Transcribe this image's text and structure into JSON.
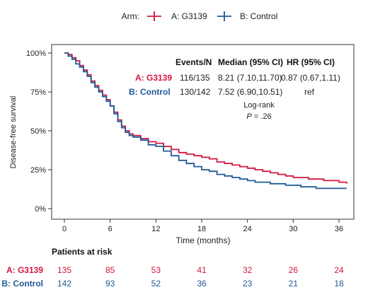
{
  "chart_data": {
    "type": "line",
    "xlabel": "Time (months)",
    "ylabel": "Disease-free survival",
    "xlim": [
      -2,
      37.5
    ],
    "ylim": [
      0,
      100
    ],
    "x_ticks": [
      0,
      6,
      12,
      18,
      24,
      30,
      36
    ],
    "y_ticks": [
      0,
      25,
      50,
      75,
      100
    ],
    "y_tick_labels": [
      "0%",
      "25%",
      "50%",
      "75%",
      "100%"
    ],
    "grid": false,
    "legend": {
      "title": "Arm:",
      "position": "top-center",
      "entries": [
        "A: G3139",
        "B: Control"
      ]
    },
    "colors": {
      "arm_a": "#d1173f",
      "arm_b": "#1f5a96"
    },
    "series": [
      {
        "name": "A: G3139",
        "color": "#d1173f",
        "points": [
          [
            0,
            100
          ],
          [
            0.5,
            99
          ],
          [
            1,
            97
          ],
          [
            1.5,
            95
          ],
          [
            2,
            92
          ],
          [
            2.5,
            89
          ],
          [
            3,
            86
          ],
          [
            3.5,
            82
          ],
          [
            4,
            79
          ],
          [
            4.5,
            76
          ],
          [
            5,
            73
          ],
          [
            5.5,
            70
          ],
          [
            6,
            66
          ],
          [
            6.5,
            62
          ],
          [
            7,
            57
          ],
          [
            7.5,
            53
          ],
          [
            8,
            50
          ],
          [
            8.5,
            48
          ],
          [
            9,
            47
          ],
          [
            10,
            45
          ],
          [
            11,
            43
          ],
          [
            12,
            42
          ],
          [
            13,
            40
          ],
          [
            14,
            38
          ],
          [
            15,
            36
          ],
          [
            16,
            35
          ],
          [
            17,
            34
          ],
          [
            18,
            33
          ],
          [
            19,
            32
          ],
          [
            20,
            30
          ],
          [
            21,
            29
          ],
          [
            22,
            28
          ],
          [
            23,
            27
          ],
          [
            24,
            26
          ],
          [
            25,
            25
          ],
          [
            26,
            24
          ],
          [
            27,
            23
          ],
          [
            28,
            22
          ],
          [
            29,
            21
          ],
          [
            30,
            20
          ],
          [
            31,
            20
          ],
          [
            32,
            19
          ],
          [
            33,
            19
          ],
          [
            34,
            18
          ],
          [
            35,
            18
          ],
          [
            36,
            17
          ],
          [
            37,
            16
          ]
        ]
      },
      {
        "name": "B: Control",
        "color": "#1f5a96",
        "points": [
          [
            0,
            100
          ],
          [
            0.5,
            98
          ],
          [
            1,
            96
          ],
          [
            1.5,
            93
          ],
          [
            2,
            91
          ],
          [
            2.5,
            88
          ],
          [
            3,
            85
          ],
          [
            3.5,
            81
          ],
          [
            4,
            78
          ],
          [
            4.5,
            75
          ],
          [
            5,
            72
          ],
          [
            5.5,
            69
          ],
          [
            6,
            66
          ],
          [
            6.5,
            61
          ],
          [
            7,
            56
          ],
          [
            7.5,
            52
          ],
          [
            8,
            49
          ],
          [
            8.5,
            47
          ],
          [
            9,
            46
          ],
          [
            10,
            44
          ],
          [
            11,
            41
          ],
          [
            12,
            40
          ],
          [
            13,
            37
          ],
          [
            14,
            34
          ],
          [
            15,
            31
          ],
          [
            16,
            29
          ],
          [
            17,
            27
          ],
          [
            18,
            25
          ],
          [
            19,
            24
          ],
          [
            20,
            22
          ],
          [
            21,
            21
          ],
          [
            22,
            20
          ],
          [
            23,
            19
          ],
          [
            24,
            18
          ],
          [
            25,
            17
          ],
          [
            26,
            17
          ],
          [
            27,
            16
          ],
          [
            28,
            16
          ],
          [
            29,
            15
          ],
          [
            30,
            15
          ],
          [
            31,
            14
          ],
          [
            32,
            14
          ],
          [
            33,
            13
          ],
          [
            34,
            13
          ],
          [
            35,
            13
          ],
          [
            36,
            13
          ],
          [
            37,
            13
          ]
        ]
      }
    ],
    "stats_table": {
      "headers": [
        "Events/N",
        "Median (95% CI)",
        "HR (95% CI)"
      ],
      "rows": [
        {
          "arm": "A: G3139",
          "events": "116/135",
          "median": "8.21 (7.10,11.70)",
          "hr": "0.87 (0.67,1.11)"
        },
        {
          "arm": "B: Control",
          "events": "130/142",
          "median": "7.52 (6.90,10.51)",
          "hr": "ref"
        }
      ]
    },
    "logrank": {
      "label": "Log-rank",
      "p_prefix": "P",
      "p_value": " = .26"
    },
    "risk_table": {
      "title": "Patients at risk",
      "times": [
        0,
        6,
        12,
        18,
        24,
        30,
        36
      ],
      "rows": [
        {
          "arm": "A: G3139",
          "color": "#d1173f",
          "values": [
            135,
            85,
            53,
            41,
            32,
            26,
            24
          ]
        },
        {
          "arm": "B: Control",
          "color": "#1f5a96",
          "values": [
            142,
            93,
            52,
            36,
            23,
            21,
            18
          ]
        }
      ]
    }
  }
}
